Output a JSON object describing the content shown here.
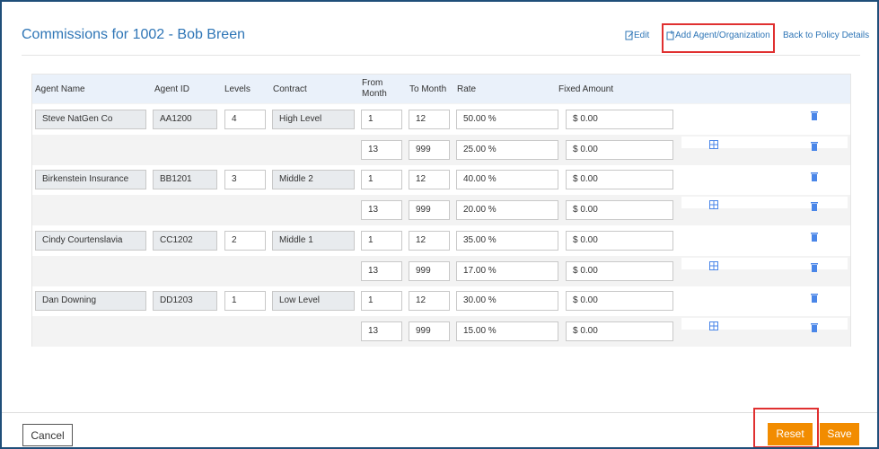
{
  "header": {
    "title": "Commissions for 1002 - Bob Breen",
    "links": [
      "Edit",
      "Add Agent/Organization",
      "Back to Policy Details"
    ]
  },
  "table": {
    "columns": [
      "Agent Name",
      "Agent ID",
      "Levels",
      "Contract",
      "From Month",
      "To Month",
      "Rate",
      "Fixed Amount"
    ],
    "agents": [
      {
        "name": "Steve NatGen Co",
        "id": "AA1200",
        "levels": 4,
        "contract": "High Level",
        "tiers": [
          {
            "from": 1,
            "to": 12,
            "rate": "50.00 %",
            "fixed": "$ 0.00"
          },
          {
            "from": 13,
            "to": 999,
            "rate": "25.00 %",
            "fixed": "$ 0.00"
          }
        ]
      },
      {
        "name": "Birkenstein Insurance",
        "id": "BB1201",
        "levels": 3,
        "contract": "Middle 2",
        "tiers": [
          {
            "from": 1,
            "to": 12,
            "rate": "40.00 %",
            "fixed": "$ 0.00"
          },
          {
            "from": 13,
            "to": 999,
            "rate": "20.00 %",
            "fixed": "$ 0.00"
          }
        ]
      },
      {
        "name": "Cindy Courtenslavia",
        "id": "CC1202",
        "levels": 2,
        "contract": "Middle 1",
        "tiers": [
          {
            "from": 1,
            "to": 12,
            "rate": "35.00 %",
            "fixed": "$ 0.00"
          },
          {
            "from": 13,
            "to": 999,
            "rate": "17.00 %",
            "fixed": "$ 0.00"
          }
        ]
      },
      {
        "name": "Dan Downing",
        "id": "DD1203",
        "levels": 1,
        "contract": "Low Level",
        "tiers": [
          {
            "from": 1,
            "to": 12,
            "rate": "30.00 %",
            "fixed": "$ 0.00"
          },
          {
            "from": 13,
            "to": 999,
            "rate": "15.00 %",
            "fixed": "$ 0.00"
          }
        ]
      }
    ]
  },
  "footer": {
    "cancel": "Cancel",
    "reset": "Reset",
    "save": "Save"
  }
}
